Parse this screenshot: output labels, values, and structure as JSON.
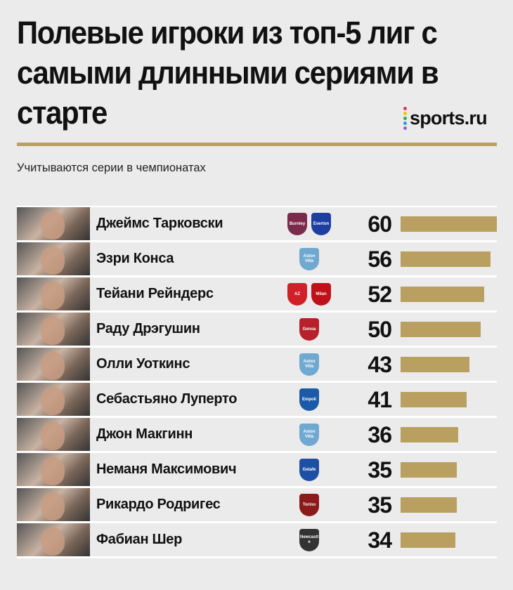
{
  "header": {
    "title": "Полевые игроки из топ-5 лиг с самыми длинными сериями в старте",
    "subtitle": "Учитываются серии в чемпионатах",
    "logo": "sports.ru"
  },
  "colors": {
    "bar": "#b9a060",
    "background": "#ebebeb",
    "logo_dots": [
      "#e8306a",
      "#f5c400",
      "#2db34a",
      "#1fa3e0",
      "#a05fc0"
    ]
  },
  "chart_data": {
    "type": "bar",
    "title": "Полевые игроки из топ-5 лиг с самыми длинными сериями в старте",
    "subtitle": "Учитываются серии в чемпионатах",
    "categories": [
      "Джеймс Тарковски",
      "Эзри Конса",
      "Тейани Рейндерс",
      "Раду Дрэгушин",
      "Олли Уоткинс",
      "Себастьяно Луперто",
      "Джон Макгинн",
      "Неманя Максимович",
      "Рикардо Родригес",
      "Фабиан Шер"
    ],
    "values": [
      60,
      56,
      52,
      50,
      43,
      41,
      36,
      35,
      35,
      34
    ],
    "clubs": [
      [
        "Burnley",
        "Everton"
      ],
      [
        "Aston Villa"
      ],
      [
        "AZ",
        "Milan"
      ],
      [
        "Genoa"
      ],
      [
        "Aston Villa"
      ],
      [
        "Empoli"
      ],
      [
        "Aston Villa"
      ],
      [
        "Getafe"
      ],
      [
        "Torino"
      ],
      [
        "Newcastle"
      ]
    ],
    "xlim": [
      0,
      60
    ]
  }
}
